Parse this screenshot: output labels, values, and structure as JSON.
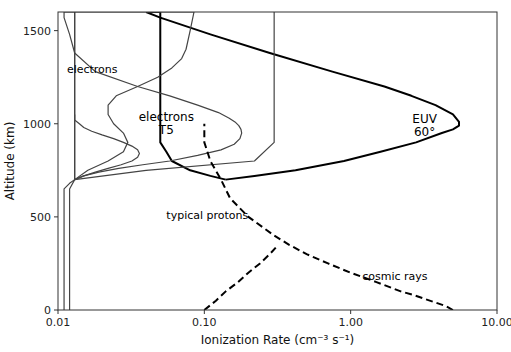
{
  "chart_data": {
    "type": "line",
    "title": "",
    "xlabel": "Ionization Rate (cm⁻³ s⁻¹)",
    "ylabel": "Altitude (km)",
    "log": "x",
    "grid": false,
    "xlim": [
      0.01,
      10
    ],
    "xticks": [
      0.01,
      {
        "value": 0.1,
        "label": "0.10"
      },
      {
        "value": 1,
        "label": "1.00"
      },
      {
        "value": 10,
        "label": "10.00"
      }
    ],
    "ylim": [
      0,
      1600
    ],
    "yticks": [
      0,
      500,
      1000,
      1500
    ],
    "series": [
      {
        "color": "#000000",
        "line_style": "solid",
        "x": [
          0.14,
          0.22,
          0.42,
          0.9,
          1.6,
          2.8,
          4.2,
          5.0,
          5.5,
          5.5,
          5.0,
          3.8,
          2.6,
          1.7,
          0.75,
          0.28,
          0.11,
          0.05,
          0.04
        ],
        "values": [
          700,
          720,
          750,
          800,
          850,
          900,
          950,
          970,
          990,
          1010,
          1050,
          1100,
          1150,
          1200,
          1280,
          1380,
          1480,
          1570,
          1600
        ]
      },
      {
        "color": "#000000",
        "line_style": "solid",
        "x": [
          0.14,
          0.11,
          0.08,
          0.06,
          0.055,
          0.05,
          0.05,
          0.05,
          0.05,
          0.05,
          0.05,
          0.05,
          0.05,
          0.05,
          0.05,
          0.05,
          0.05,
          0.05,
          0.05
        ],
        "values": [
          700,
          720,
          750,
          800,
          850,
          900,
          950,
          970,
          990,
          1010,
          1050,
          1100,
          1150,
          1200,
          1280,
          1380,
          1480,
          1570,
          1600
        ]
      },
      {
        "color": "#000000",
        "line_style": "solid",
        "x": [
          0.14,
          0.14
        ],
        "values": [
          700,
          700
        ]
      },
      {
        "color": "#000000",
        "line_style": "solid",
        "x": [
          0.05,
          0.04
        ],
        "values": [
          1600,
          1600
        ]
      },
      {
        "color": "#444444",
        "line_style": "solid",
        "x": [
          0.013,
          0.016,
          0.022,
          0.028,
          0.03,
          0.028,
          0.024,
          0.022,
          0.022,
          0.025,
          0.035,
          0.048,
          0.06,
          0.07,
          0.075,
          0.08,
          0.085
        ],
        "values": [
          700,
          750,
          800,
          850,
          900,
          950,
          1000,
          1050,
          1100,
          1150,
          1200,
          1250,
          1300,
          1350,
          1400,
          1500,
          1600
        ]
      },
      {
        "color": "#444444",
        "line_style": "solid",
        "x": [
          0.012,
          0.012,
          0.012,
          0.012,
          0.012,
          0.012,
          0.012,
          0.012,
          0.013,
          0.013,
          0.013,
          0.013,
          0.013,
          0.013,
          0.013,
          0.013,
          0.013,
          0.013,
          0.013,
          0.013,
          0.013,
          0.013,
          0.013
        ],
        "values": [
          0,
          100,
          200,
          300,
          400,
          500,
          600,
          650,
          700,
          750,
          800,
          850,
          900,
          950,
          1000,
          1050,
          1100,
          1150,
          1200,
          1300,
          1400,
          1500,
          1600
        ]
      },
      {
        "color": "#444444",
        "line_style": "solid",
        "x": [
          0.013,
          0.013
        ],
        "values": [
          700,
          700
        ]
      },
      {
        "color": "#444444",
        "line_style": "solid",
        "x": [
          0.085,
          0.013
        ],
        "values": [
          1600,
          1600
        ]
      },
      {
        "color": "#444444",
        "line_style": "solid",
        "x": [
          0.013,
          0.015,
          0.018,
          0.022,
          0.027,
          0.032,
          0.035,
          0.036,
          0.035,
          0.032,
          0.028,
          0.024,
          0.02,
          0.017,
          0.015,
          0.014,
          0.013,
          0.013
        ],
        "values": [
          700,
          720,
          740,
          760,
          780,
          800,
          820,
          840,
          860,
          880,
          900,
          920,
          940,
          960,
          980,
          1000,
          1020,
          1050
        ]
      },
      {
        "color": "#444444",
        "line_style": "solid",
        "x": [
          0.013,
          0.015,
          0.019,
          0.026,
          0.038,
          0.058,
          0.09,
          0.13,
          0.16,
          0.175,
          0.18,
          0.178,
          0.172,
          0.162,
          0.148,
          0.125,
          0.09,
          0.058,
          0.035,
          0.018,
          0.013,
          0.012,
          0.011,
          0.011
        ],
        "values": [
          700,
          720,
          740,
          760,
          780,
          800,
          830,
          860,
          890,
          920,
          950,
          970,
          990,
          1010,
          1030,
          1060,
          1100,
          1150,
          1200,
          1280,
          1380,
          1480,
          1570,
          1600
        ]
      },
      {
        "color": "#444444",
        "line_style": "solid",
        "x": [
          0.013,
          0.013,
          0.013,
          0.013,
          0.013,
          0.013,
          0.013,
          0.013,
          0.013,
          0.013,
          0.013,
          0.013,
          0.013,
          0.013,
          0.013,
          0.013,
          0.013,
          0.013,
          0.013,
          0.013,
          0.013,
          0.013,
          0.013,
          0.013
        ],
        "values": [
          700,
          720,
          740,
          760,
          780,
          800,
          830,
          860,
          890,
          920,
          950,
          970,
          990,
          1010,
          1030,
          1060,
          1100,
          1150,
          1200,
          1280,
          1380,
          1480,
          1570,
          1600
        ]
      },
      {
        "color": "#444444",
        "line_style": "solid",
        "x": [
          0.013,
          0.013
        ],
        "values": [
          700,
          700
        ]
      },
      {
        "color": "#444444",
        "line_style": "solid",
        "x": [
          0.013,
          0.011
        ],
        "values": [
          1600,
          1600
        ]
      },
      {
        "color": "#444444",
        "line_style": "solid",
        "x": [
          0.011,
          0.011,
          0.011,
          0.011,
          0.011,
          0.011,
          0.011,
          0.011,
          0.012,
          0.013,
          0.04,
          0.22,
          0.3,
          0.3,
          0.3,
          0.3,
          0.3,
          0.3,
          0.3,
          0.3
        ],
        "values": [
          0,
          100,
          200,
          300,
          400,
          500,
          600,
          650,
          680,
          700,
          750,
          800,
          900,
          1000,
          1100,
          1200,
          1300,
          1400,
          1500,
          1600
        ]
      },
      {
        "color": "#000000",
        "line_style": "dashed",
        "x": [
          0.1,
          0.12,
          0.14,
          0.17,
          0.2,
          0.24,
          0.28,
          0.32
        ],
        "values": [
          0,
          50,
          100,
          150,
          200,
          250,
          300,
          350
        ]
      },
      {
        "color": "#000000",
        "line_style": "dashed",
        "x": [
          5.0,
          4.5,
          3.8,
          3.2,
          2.7,
          2.2,
          1.5,
          1.0,
          0.7,
          0.5,
          0.38,
          0.3,
          0.2,
          0.15,
          0.13,
          0.11,
          0.1,
          0.1
        ],
        "values": [
          0,
          20,
          40,
          60,
          80,
          100,
          150,
          200,
          250,
          300,
          350,
          400,
          500,
          600,
          700,
          800,
          900,
          1000
        ]
      }
    ],
    "annotations": [
      {
        "text": "electrons",
        "x": 0.0115,
        "y": 1270
      },
      {
        "text": "electrons\nT5",
        "x": 0.055,
        "y": 1000
      },
      {
        "text": "EUV\n60°",
        "x": 3.2,
        "y": 990
      },
      {
        "text": "typical protons",
        "x": 0.055,
        "y": 490
      },
      {
        "text": "cosmic rays",
        "x": 1.2,
        "y": 160
      }
    ]
  }
}
